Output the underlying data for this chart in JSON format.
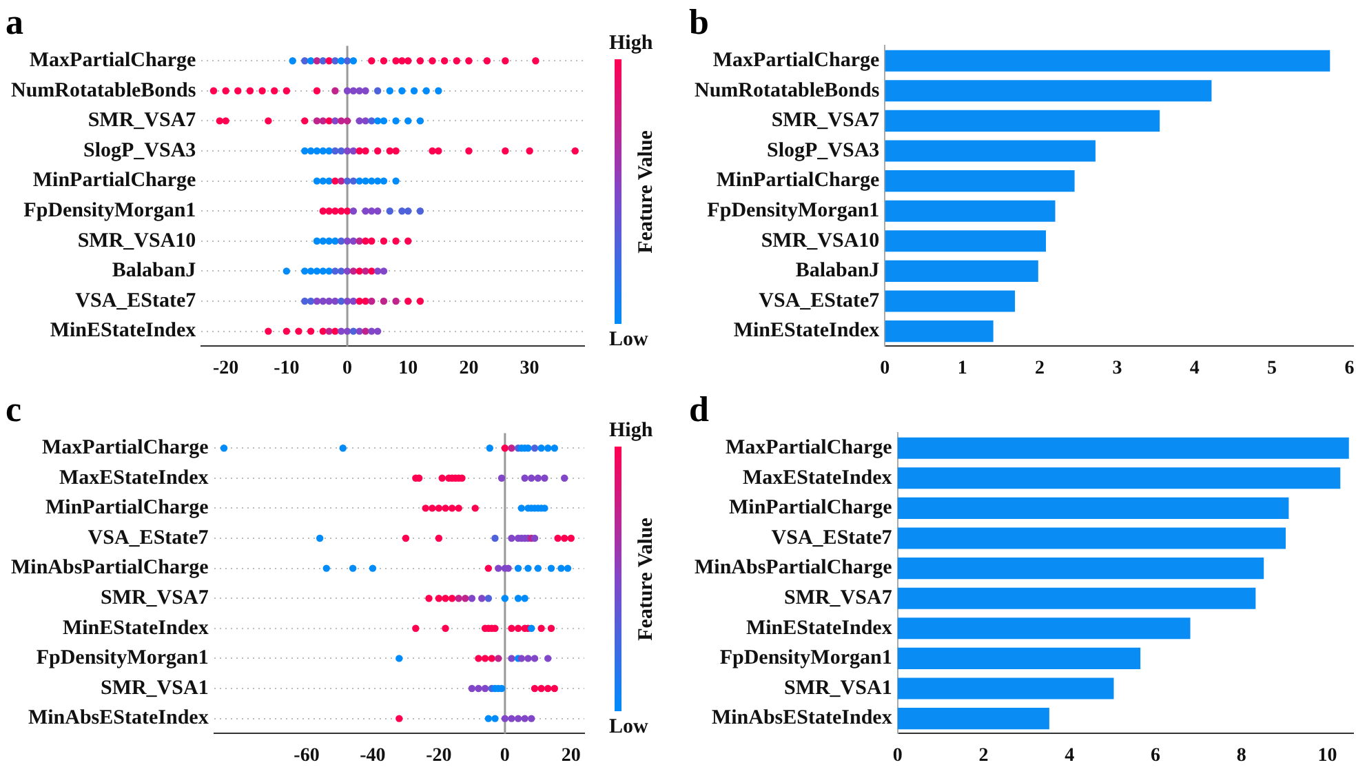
{
  "chart_data": [
    {
      "type": "scatter",
      "title": "a",
      "orientation": "horizontal",
      "marker": "circle",
      "grid": "y",
      "categories": [
        "MaxPartialCharge",
        "NumRotatableBonds",
        "SMR_VSA7",
        "SlogP_VSA3",
        "MinPartialCharge",
        "FpDensityMorgan1",
        "SMR_VSA10",
        "BalabanJ",
        "VSA_EState7",
        "MinEStateIndex"
      ],
      "xlim": [
        -24,
        39
      ],
      "xticks": [
        -20,
        -10,
        0,
        10,
        20,
        30
      ],
      "ref_lines": [
        {
          "axis": "x",
          "value": 0,
          "color": "#999999"
        }
      ],
      "clabel": "Feature Value",
      "annotations": [
        "High",
        "Low"
      ],
      "series": [
        {
          "x": [
            "MaxPartialCharge",
            "MaxPartialCharge",
            "MaxPartialCharge",
            "MaxPartialCharge",
            "MaxPartialCharge",
            "MaxPartialCharge",
            "MaxPartialCharge",
            "MaxPartialCharge",
            "MaxPartialCharge",
            "MaxPartialCharge",
            "MaxPartialCharge",
            "MaxPartialCharge",
            "MaxPartialCharge",
            "MaxPartialCharge",
            "MaxPartialCharge",
            "MaxPartialCharge",
            "MaxPartialCharge",
            "MaxPartialCharge",
            "MaxPartialCharge",
            "MaxPartialCharge",
            "MaxPartialCharge",
            "MaxPartialCharge",
            "MaxPartialCharge"
          ],
          "values": [
            -9,
            -7,
            -6,
            -5,
            -4,
            -3,
            -2,
            -1,
            0,
            1,
            4,
            6,
            8,
            9,
            10,
            12,
            14,
            16,
            18,
            20,
            23,
            26,
            31
          ],
          "colors": [
            "#008bfb",
            "#4e62dc",
            "#008bfb",
            "#c0238c",
            "#4e62dc",
            "#ff0051",
            "#4e62dc",
            "#008bfb",
            "#4e62dc",
            "#008bfb",
            "#ff0051",
            "#ff0051",
            "#ff0051",
            "#ff0051",
            "#ff0051",
            "#ff0051",
            "#ff0051",
            "#ff0051",
            "#ff0051",
            "#ff0051",
            "#ff0051",
            "#ff0051",
            "#ff0051"
          ]
        },
        {
          "x": [
            "NumRotatableBonds",
            "NumRotatableBonds",
            "NumRotatableBonds",
            "NumRotatableBonds",
            "NumRotatableBonds",
            "NumRotatableBonds",
            "NumRotatableBonds",
            "NumRotatableBonds",
            "NumRotatableBonds",
            "NumRotatableBonds",
            "NumRotatableBonds",
            "NumRotatableBonds",
            "NumRotatableBonds",
            "NumRotatableBonds",
            "NumRotatableBonds",
            "NumRotatableBonds",
            "NumRotatableBonds",
            "NumRotatableBonds",
            "NumRotatableBonds"
          ],
          "values": [
            -22,
            -20,
            -18,
            -16,
            -14,
            -12,
            -10,
            -5,
            -2,
            0,
            1,
            2,
            3,
            5,
            7,
            9,
            11,
            13,
            15
          ],
          "colors": [
            "#ff0051",
            "#ff0051",
            "#ff0051",
            "#ff0051",
            "#ff0051",
            "#ff0051",
            "#ff0051",
            "#ff0051",
            "#c0238c",
            "#8246c8",
            "#8246c8",
            "#8246c8",
            "#8246c8",
            "#4e62dc",
            "#008bfb",
            "#008bfb",
            "#008bfb",
            "#008bfb",
            "#008bfb"
          ]
        },
        {
          "x": [
            "SMR_VSA7",
            "SMR_VSA7",
            "SMR_VSA7",
            "SMR_VSA7",
            "SMR_VSA7",
            "SMR_VSA7",
            "SMR_VSA7",
            "SMR_VSA7",
            "SMR_VSA7",
            "SMR_VSA7",
            "SMR_VSA7",
            "SMR_VSA7",
            "SMR_VSA7",
            "SMR_VSA7",
            "SMR_VSA7",
            "SMR_VSA7",
            "SMR_VSA7",
            "SMR_VSA7"
          ],
          "values": [
            -21,
            -20,
            -13,
            -7,
            -5,
            -4,
            -3,
            -2,
            -1,
            0,
            2,
            3,
            4,
            5,
            6,
            8,
            10,
            12
          ],
          "colors": [
            "#ff0051",
            "#ff0051",
            "#ff0051",
            "#ff0051",
            "#c0238c",
            "#c0238c",
            "#ff0051",
            "#8246c8",
            "#c0238c",
            "#c0238c",
            "#8246c8",
            "#8246c8",
            "#4e62dc",
            "#008bfb",
            "#008bfb",
            "#008bfb",
            "#008bfb",
            "#008bfb"
          ]
        },
        {
          "x": [
            "SlogP_VSA3",
            "SlogP_VSA3",
            "SlogP_VSA3",
            "SlogP_VSA3",
            "SlogP_VSA3",
            "SlogP_VSA3",
            "SlogP_VSA3",
            "SlogP_VSA3",
            "SlogP_VSA3",
            "SlogP_VSA3",
            "SlogP_VSA3",
            "SlogP_VSA3",
            "SlogP_VSA3",
            "SlogP_VSA3",
            "SlogP_VSA3",
            "SlogP_VSA3",
            "SlogP_VSA3",
            "SlogP_VSA3",
            "SlogP_VSA3",
            "SlogP_VSA3"
          ],
          "values": [
            -7,
            -6,
            -5,
            -4,
            -3,
            -2,
            -1,
            0,
            1,
            2,
            3,
            5,
            7,
            8,
            14,
            15,
            20,
            26,
            30,
            37.5
          ],
          "colors": [
            "#008bfb",
            "#008bfb",
            "#008bfb",
            "#008bfb",
            "#008bfb",
            "#4e62dc",
            "#4e62dc",
            "#8246c8",
            "#8246c8",
            "#ff0051",
            "#ff0051",
            "#ff0051",
            "#ff0051",
            "#ff0051",
            "#ff0051",
            "#ff0051",
            "#ff0051",
            "#ff0051",
            "#ff0051",
            "#ff0051"
          ]
        },
        {
          "x": [
            "MinPartialCharge",
            "MinPartialCharge",
            "MinPartialCharge",
            "MinPartialCharge",
            "MinPartialCharge",
            "MinPartialCharge",
            "MinPartialCharge",
            "MinPartialCharge",
            "MinPartialCharge",
            "MinPartialCharge",
            "MinPartialCharge",
            "MinPartialCharge",
            "MinPartialCharge"
          ],
          "values": [
            -5,
            -4,
            -3,
            -2,
            -1,
            0,
            1,
            2,
            3,
            4,
            5,
            6,
            8
          ],
          "colors": [
            "#008bfb",
            "#008bfb",
            "#008bfb",
            "#ff0051",
            "#c0238c",
            "#4e62dc",
            "#4e62dc",
            "#008bfb",
            "#008bfb",
            "#008bfb",
            "#008bfb",
            "#008bfb",
            "#008bfb"
          ]
        },
        {
          "x": [
            "FpDensityMorgan1",
            "FpDensityMorgan1",
            "FpDensityMorgan1",
            "FpDensityMorgan1",
            "FpDensityMorgan1",
            "FpDensityMorgan1",
            "FpDensityMorgan1",
            "FpDensityMorgan1",
            "FpDensityMorgan1",
            "FpDensityMorgan1",
            "FpDensityMorgan1",
            "FpDensityMorgan1",
            "FpDensityMorgan1"
          ],
          "values": [
            -4,
            -3,
            -2,
            -1,
            0,
            1,
            3,
            4,
            5,
            7,
            9,
            10,
            12
          ],
          "colors": [
            "#ff0051",
            "#ff0051",
            "#ff0051",
            "#ff0051",
            "#ff0051",
            "#8246c8",
            "#8246c8",
            "#8246c8",
            "#8246c8",
            "#4e62dc",
            "#4e62dc",
            "#4e62dc",
            "#4e62dc"
          ]
        },
        {
          "x": [
            "SMR_VSA10",
            "SMR_VSA10",
            "SMR_VSA10",
            "SMR_VSA10",
            "SMR_VSA10",
            "SMR_VSA10",
            "SMR_VSA10",
            "SMR_VSA10",
            "SMR_VSA10",
            "SMR_VSA10",
            "SMR_VSA10",
            "SMR_VSA10",
            "SMR_VSA10"
          ],
          "values": [
            -5,
            -4,
            -3,
            -2,
            -1,
            0,
            1,
            2,
            3,
            4,
            6,
            8,
            10
          ],
          "colors": [
            "#008bfb",
            "#008bfb",
            "#008bfb",
            "#008bfb",
            "#4e62dc",
            "#8246c8",
            "#8246c8",
            "#c0238c",
            "#ff0051",
            "#ff0051",
            "#ff0051",
            "#ff0051",
            "#ff0051"
          ]
        },
        {
          "x": [
            "BalabanJ",
            "BalabanJ",
            "BalabanJ",
            "BalabanJ",
            "BalabanJ",
            "BalabanJ",
            "BalabanJ",
            "BalabanJ",
            "BalabanJ",
            "BalabanJ",
            "BalabanJ",
            "BalabanJ",
            "BalabanJ",
            "BalabanJ",
            "BalabanJ"
          ],
          "values": [
            -10,
            -7,
            -6,
            -5,
            -4,
            -3,
            -2,
            -1,
            0,
            1,
            2,
            3,
            4,
            5,
            6
          ],
          "colors": [
            "#008bfb",
            "#008bfb",
            "#008bfb",
            "#008bfb",
            "#008bfb",
            "#008bfb",
            "#4e62dc",
            "#4e62dc",
            "#8246c8",
            "#c0238c",
            "#ff0051",
            "#c0238c",
            "#ff0051",
            "#8246c8",
            "#8246c8"
          ]
        },
        {
          "x": [
            "VSA_EState7",
            "VSA_EState7",
            "VSA_EState7",
            "VSA_EState7",
            "VSA_EState7",
            "VSA_EState7",
            "VSA_EState7",
            "VSA_EState7",
            "VSA_EState7",
            "VSA_EState7",
            "VSA_EState7",
            "VSA_EState7",
            "VSA_EState7",
            "VSA_EState7",
            "VSA_EState7",
            "VSA_EState7"
          ],
          "values": [
            -7,
            -6,
            -5,
            -4,
            -3,
            -2,
            -1,
            0,
            1,
            2,
            3,
            4,
            6,
            8,
            10,
            12
          ],
          "colors": [
            "#4e62dc",
            "#4e62dc",
            "#8246c8",
            "#8246c8",
            "#8246c8",
            "#8246c8",
            "#4e62dc",
            "#8246c8",
            "#8246c8",
            "#ff0051",
            "#ff0051",
            "#c0238c",
            "#c0238c",
            "#c0238c",
            "#ff0051",
            "#ff0051"
          ]
        },
        {
          "x": [
            "MinEStateIndex",
            "MinEStateIndex",
            "MinEStateIndex",
            "MinEStateIndex",
            "MinEStateIndex",
            "MinEStateIndex",
            "MinEStateIndex",
            "MinEStateIndex",
            "MinEStateIndex",
            "MinEStateIndex",
            "MinEStateIndex",
            "MinEStateIndex",
            "MinEStateIndex",
            "MinEStateIndex"
          ],
          "values": [
            -13,
            -10,
            -8,
            -6,
            -4,
            -3,
            -2,
            -1,
            0,
            1,
            2,
            3,
            4,
            5
          ],
          "colors": [
            "#ff0051",
            "#ff0051",
            "#ff0051",
            "#ff0051",
            "#ff0051",
            "#c0238c",
            "#ff0051",
            "#8246c8",
            "#8246c8",
            "#4e62dc",
            "#8246c8",
            "#c0238c",
            "#8246c8",
            "#8246c8"
          ]
        }
      ]
    },
    {
      "type": "bar",
      "title": "b",
      "orientation": "horizontal",
      "color": "#0a8cf5",
      "categories": [
        "MaxPartialCharge",
        "NumRotatableBonds",
        "SMR_VSA7",
        "SlogP_VSA3",
        "MinPartialCharge",
        "FpDensityMorgan1",
        "SMR_VSA10",
        "BalabanJ",
        "VSA_EState7",
        "MinEStateIndex"
      ],
      "values": [
        5.75,
        4.22,
        3.55,
        2.72,
        2.45,
        2.2,
        2.08,
        1.98,
        1.68,
        1.4
      ],
      "xlim": [
        0,
        6.05
      ],
      "xticks": [
        0,
        1,
        2,
        3,
        4,
        5,
        6
      ]
    },
    {
      "type": "scatter",
      "title": "c",
      "orientation": "horizontal",
      "marker": "circle",
      "grid": "y",
      "categories": [
        "MaxPartialCharge",
        "MaxEStateIndex",
        "MinPartialCharge",
        "VSA_EState7",
        "MinAbsPartialCharge",
        "SMR_VSA7",
        "MinEStateIndex",
        "FpDensityMorgan1",
        "SMR_VSA1",
        "MinAbsEStateIndex"
      ],
      "xlim": [
        -88,
        24
      ],
      "xticks": [
        -60,
        -40,
        -20,
        0,
        20
      ],
      "ref_lines": [
        {
          "axis": "x",
          "value": 0,
          "color": "#999999"
        }
      ],
      "clabel": "Feature Value",
      "annotations": [
        "High",
        "Low"
      ],
      "series": [
        {
          "x": [
            "MaxPartialCharge",
            "MaxPartialCharge",
            "MaxPartialCharge",
            "MaxPartialCharge",
            "MaxPartialCharge",
            "MaxPartialCharge",
            "MaxPartialCharge",
            "MaxPartialCharge",
            "MaxPartialCharge",
            "MaxPartialCharge",
            "MaxPartialCharge",
            "MaxPartialCharge",
            "MaxPartialCharge"
          ],
          "values": [
            -85,
            -49,
            -4.6,
            0,
            2,
            4,
            5,
            6,
            7,
            9,
            11,
            13,
            15
          ],
          "colors": [
            "#008bfb",
            "#008bfb",
            "#008bfb",
            "#ff0051",
            "#c0238c",
            "#4e62dc",
            "#008bfb",
            "#008bfb",
            "#008bfb",
            "#4e62dc",
            "#008bfb",
            "#008bfb",
            "#008bfb"
          ]
        },
        {
          "x": [
            "MaxEStateIndex",
            "MaxEStateIndex",
            "MaxEStateIndex",
            "MaxEStateIndex",
            "MaxEStateIndex",
            "MaxEStateIndex",
            "MaxEStateIndex",
            "MaxEStateIndex",
            "MaxEStateIndex",
            "MaxEStateIndex",
            "MaxEStateIndex",
            "MaxEStateIndex",
            "MaxEStateIndex",
            "MaxEStateIndex"
          ],
          "values": [
            -27,
            -26,
            -19,
            -17,
            -16,
            -15,
            -14,
            -13,
            -1,
            6,
            8,
            10,
            12,
            18
          ],
          "colors": [
            "#ff0051",
            "#ff0051",
            "#ff0051",
            "#ff0051",
            "#ff0051",
            "#ff0051",
            "#ff0051",
            "#ff0051",
            "#8246c8",
            "#8246c8",
            "#8246c8",
            "#8246c8",
            "#8246c8",
            "#8246c8"
          ]
        },
        {
          "x": [
            "MinPartialCharge",
            "MinPartialCharge",
            "MinPartialCharge",
            "MinPartialCharge",
            "MinPartialCharge",
            "MinPartialCharge",
            "MinPartialCharge",
            "MinPartialCharge",
            "MinPartialCharge",
            "MinPartialCharge",
            "MinPartialCharge",
            "MinPartialCharge",
            "MinPartialCharge",
            "MinPartialCharge"
          ],
          "values": [
            -24,
            -22,
            -20,
            -18,
            -16,
            -14,
            -9,
            5,
            7,
            8,
            9,
            10,
            11,
            12
          ],
          "colors": [
            "#ff0051",
            "#ff0051",
            "#ff0051",
            "#ff0051",
            "#ff0051",
            "#ff0051",
            "#ff0051",
            "#008bfb",
            "#008bfb",
            "#008bfb",
            "#008bfb",
            "#008bfb",
            "#008bfb",
            "#008bfb"
          ]
        },
        {
          "x": [
            "VSA_EState7",
            "VSA_EState7",
            "VSA_EState7",
            "VSA_EState7",
            "VSA_EState7",
            "VSA_EState7",
            "VSA_EState7",
            "VSA_EState7",
            "VSA_EState7",
            "VSA_EState7",
            "VSA_EState7",
            "VSA_EState7",
            "VSA_EState7",
            "VSA_EState7"
          ],
          "values": [
            -56,
            -30,
            -20,
            -3,
            2,
            4,
            5,
            6,
            7,
            8,
            9,
            16,
            18,
            20
          ],
          "colors": [
            "#008bfb",
            "#ff0051",
            "#ff0051",
            "#4e62dc",
            "#8246c8",
            "#8246c8",
            "#8246c8",
            "#8246c8",
            "#8246c8",
            "#c0238c",
            "#8246c8",
            "#ff0051",
            "#ff0051",
            "#ff0051"
          ]
        },
        {
          "x": [
            "MinAbsPartialCharge",
            "MinAbsPartialCharge",
            "MinAbsPartialCharge",
            "MinAbsPartialCharge",
            "MinAbsPartialCharge",
            "MinAbsPartialCharge",
            "MinAbsPartialCharge",
            "MinAbsPartialCharge",
            "MinAbsPartialCharge",
            "MinAbsPartialCharge",
            "MinAbsPartialCharge",
            "MinAbsPartialCharge",
            "MinAbsPartialCharge"
          ],
          "values": [
            -54,
            -46,
            -40,
            -5,
            -2,
            0,
            1,
            4,
            7,
            10,
            14,
            17,
            19
          ],
          "colors": [
            "#008bfb",
            "#008bfb",
            "#008bfb",
            "#ff0051",
            "#8246c8",
            "#8246c8",
            "#8246c8",
            "#008bfb",
            "#008bfb",
            "#008bfb",
            "#008bfb",
            "#008bfb",
            "#008bfb"
          ]
        },
        {
          "x": [
            "SMR_VSA7",
            "SMR_VSA7",
            "SMR_VSA7",
            "SMR_VSA7",
            "SMR_VSA7",
            "SMR_VSA7",
            "SMR_VSA7",
            "SMR_VSA7",
            "SMR_VSA7",
            "SMR_VSA7",
            "SMR_VSA7",
            "SMR_VSA7"
          ],
          "values": [
            -23,
            -20,
            -18,
            -16,
            -14,
            -12,
            -10,
            -7,
            -5,
            0,
            4,
            6
          ],
          "colors": [
            "#ff0051",
            "#ff0051",
            "#ff0051",
            "#ff0051",
            "#c0238c",
            "#c0238c",
            "#8246c8",
            "#8246c8",
            "#4e62dc",
            "#008bfb",
            "#008bfb",
            "#008bfb"
          ]
        },
        {
          "x": [
            "MinEStateIndex",
            "MinEStateIndex",
            "MinEStateIndex",
            "MinEStateIndex",
            "MinEStateIndex",
            "MinEStateIndex",
            "MinEStateIndex",
            "MinEStateIndex",
            "MinEStateIndex",
            "MinEStateIndex",
            "MinEStateIndex",
            "MinEStateIndex",
            "MinEStateIndex"
          ],
          "values": [
            -27,
            -18,
            -6,
            -5,
            -4,
            -3,
            2,
            4,
            6,
            7,
            8,
            11,
            14
          ],
          "colors": [
            "#ff0051",
            "#ff0051",
            "#ff0051",
            "#ff0051",
            "#ff0051",
            "#ff0051",
            "#ff0051",
            "#ff0051",
            "#ff0051",
            "#ff0051",
            "#008bfb",
            "#ff0051",
            "#ff0051"
          ]
        },
        {
          "x": [
            "FpDensityMorgan1",
            "FpDensityMorgan1",
            "FpDensityMorgan1",
            "FpDensityMorgan1",
            "FpDensityMorgan1",
            "FpDensityMorgan1",
            "FpDensityMorgan1",
            "FpDensityMorgan1",
            "FpDensityMorgan1",
            "FpDensityMorgan1",
            "FpDensityMorgan1"
          ],
          "values": [
            -32,
            -8,
            -6,
            -4,
            -2,
            2,
            4,
            5,
            7,
            9,
            13
          ],
          "colors": [
            "#008bfb",
            "#ff0051",
            "#ff0051",
            "#ff0051",
            "#c0238c",
            "#8246c8",
            "#008bfb",
            "#8246c8",
            "#8246c8",
            "#8246c8",
            "#8246c8"
          ]
        },
        {
          "x": [
            "SMR_VSA1",
            "SMR_VSA1",
            "SMR_VSA1",
            "SMR_VSA1",
            "SMR_VSA1",
            "SMR_VSA1",
            "SMR_VSA1",
            "SMR_VSA1",
            "SMR_VSA1",
            "SMR_VSA1",
            "SMR_VSA1"
          ],
          "values": [
            -10,
            -8,
            -6,
            -4,
            -3,
            -2,
            -1,
            9,
            11,
            13,
            15
          ],
          "colors": [
            "#8246c8",
            "#8246c8",
            "#8246c8",
            "#4e62dc",
            "#008bfb",
            "#008bfb",
            "#008bfb",
            "#ff0051",
            "#ff0051",
            "#ff0051",
            "#ff0051"
          ]
        },
        {
          "x": [
            "MinAbsEStateIndex",
            "MinAbsEStateIndex",
            "MinAbsEStateIndex",
            "MinAbsEStateIndex",
            "MinAbsEStateIndex",
            "MinAbsEStateIndex",
            "MinAbsEStateIndex",
            "MinAbsEStateIndex"
          ],
          "values": [
            -32,
            -5,
            -3,
            0,
            2,
            4,
            6,
            8
          ],
          "colors": [
            "#ff0051",
            "#008bfb",
            "#008bfb",
            "#8246c8",
            "#8246c8",
            "#8246c8",
            "#8246c8",
            "#8246c8"
          ]
        }
      ]
    },
    {
      "type": "bar",
      "title": "d",
      "orientation": "horizontal",
      "color": "#0a8cf5",
      "categories": [
        "MaxPartialCharge",
        "MaxEStateIndex",
        "MinPartialCharge",
        "VSA_EState7",
        "MinAbsPartialCharge",
        "SMR_VSA7",
        "MinEStateIndex",
        "FpDensityMorgan1",
        "SMR_VSA1",
        "MinAbsEStateIndex"
      ],
      "values": [
        10.5,
        10.3,
        9.1,
        9.03,
        8.52,
        8.33,
        6.81,
        5.65,
        5.03,
        3.53
      ],
      "xlim": [
        0,
        10.6
      ],
      "xticks": [
        0,
        2,
        4,
        6,
        8,
        10
      ]
    }
  ]
}
